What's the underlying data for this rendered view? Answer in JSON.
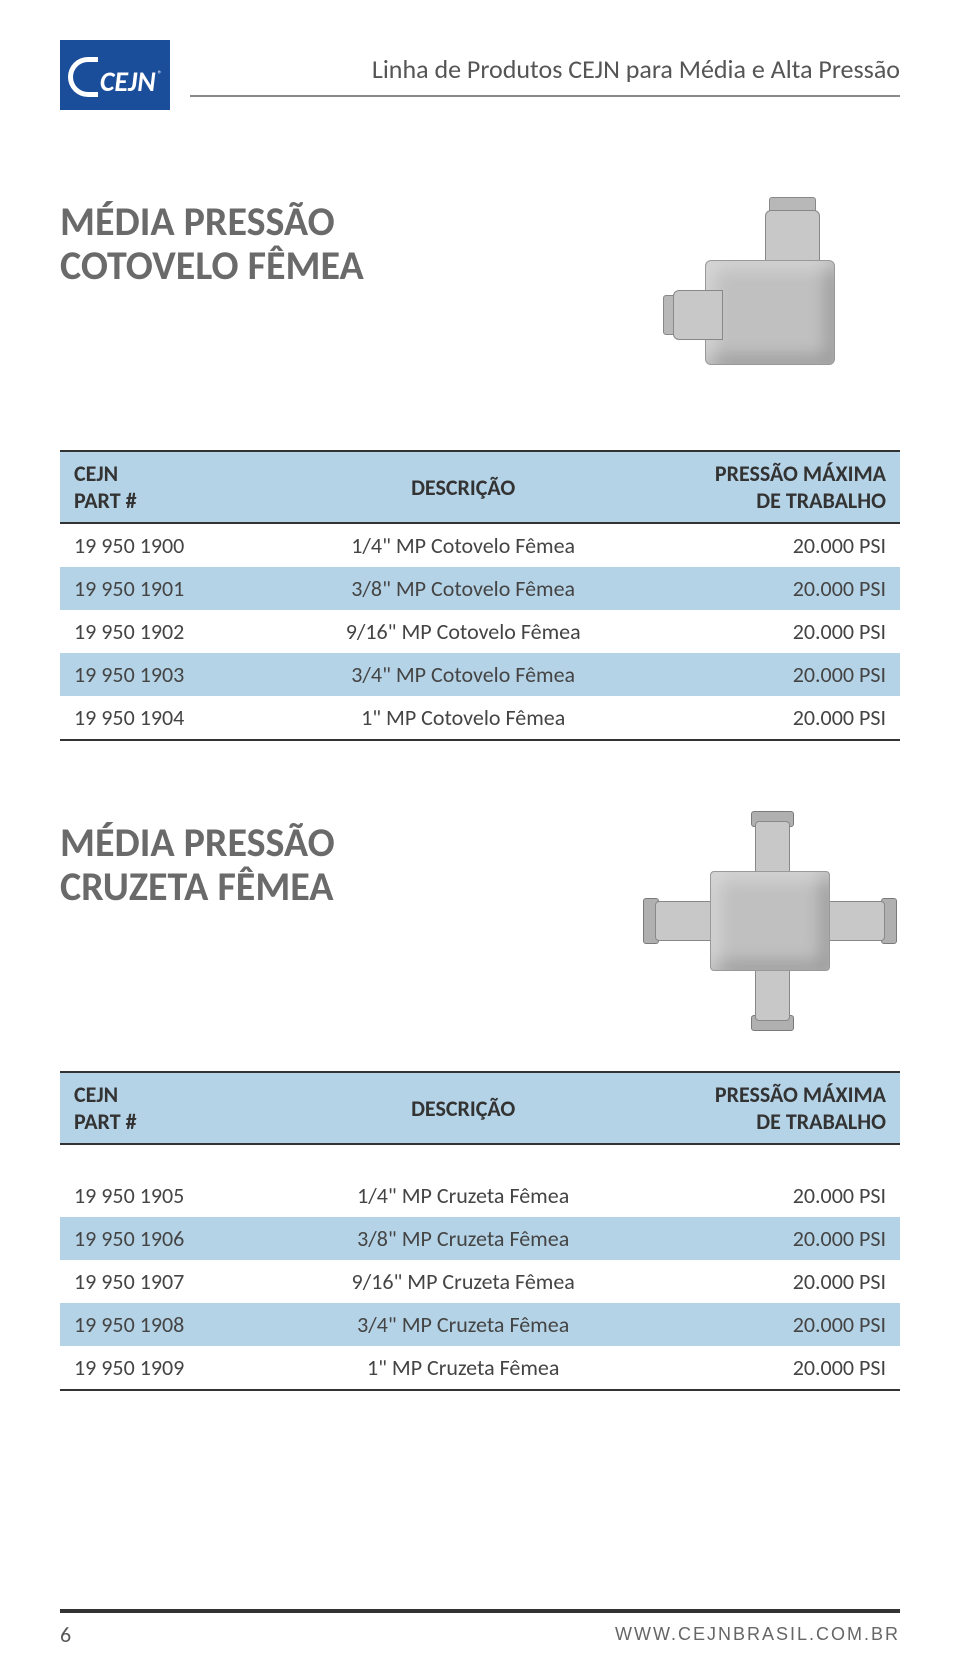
{
  "colors": {
    "header_bg": "#b5d3e7",
    "logo_bg": "#1a4d9a",
    "text": "#4a4a4a",
    "rule": "#333333"
  },
  "header": {
    "brand": "CEJN",
    "title": "Linha de Produtos CEJN para Média e Alta Pressão"
  },
  "table_headers": {
    "col1_line1": "CEJN",
    "col1_line2": "PART #",
    "col2": "DESCRIÇÃO",
    "col3_line1": "PRESSÃO MÁXIMA",
    "col3_line2": "DE TRABALHO"
  },
  "section1": {
    "title_line1": "MÉDIA PRESSÃO",
    "title_line2": "COTOVELO FÊMEA",
    "rows": [
      {
        "part": "19 950 1900",
        "desc": "1/4\" MP Cotovelo Fêmea",
        "press": "20.000 PSI"
      },
      {
        "part": "19 950 1901",
        "desc": "3/8\" MP Cotovelo Fêmea",
        "press": "20.000 PSI"
      },
      {
        "part": "19 950 1902",
        "desc": "9/16\" MP Cotovelo Fêmea",
        "press": "20.000 PSI"
      },
      {
        "part": "19 950 1903",
        "desc": "3/4\" MP Cotovelo Fêmea",
        "press": "20.000 PSI"
      },
      {
        "part": "19 950 1904",
        "desc": "1\" MP Cotovelo Fêmea",
        "press": "20.000 PSI"
      }
    ]
  },
  "section2": {
    "title_line1": "MÉDIA PRESSÃO",
    "title_line2": "CRUZETA FÊMEA",
    "rows": [
      {
        "part": "19 950 1905",
        "desc": "1/4\" MP Cruzeta Fêmea",
        "press": "20.000 PSI"
      },
      {
        "part": "19 950 1906",
        "desc": "3/8\" MP Cruzeta Fêmea",
        "press": "20.000 PSI"
      },
      {
        "part": "19 950 1907",
        "desc": "9/16\" MP Cruzeta Fêmea",
        "press": "20.000 PSI"
      },
      {
        "part": "19 950 1908",
        "desc": "3/4\" MP Cruzeta Fêmea",
        "press": "20.000 PSI"
      },
      {
        "part": "19 950 1909",
        "desc": "1\" MP Cruzeta Fêmea",
        "press": "20.000 PSI"
      }
    ]
  },
  "footer": {
    "page": "6",
    "url": "WWW.CEJNBRASIL.COM.BR"
  }
}
